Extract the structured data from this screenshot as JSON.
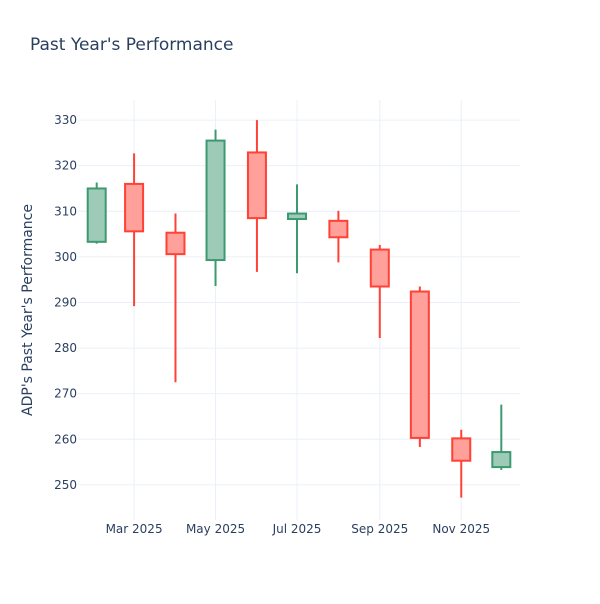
{
  "chart_data": {
    "type": "candlestick",
    "title": "Past Year's Performance",
    "xlabel": "",
    "ylabel": "ADP's Past Year's Performance",
    "xlim": [
      "2025-01-18",
      "2025-12-15"
    ],
    "ylim": [
      242.3,
      334.4
    ],
    "grid": true,
    "legend": "none",
    "x_ticks": [
      {
        "date": "2025-03-01",
        "label": "Mar 2025"
      },
      {
        "date": "2025-05-01",
        "label": "May 2025"
      },
      {
        "date": "2025-07-01",
        "label": "Jul 2025"
      },
      {
        "date": "2025-09-01",
        "label": "Sep 2025"
      },
      {
        "date": "2025-11-01",
        "label": "Nov 2025"
      }
    ],
    "y_ticks": [
      250,
      260,
      270,
      280,
      290,
      300,
      310,
      320,
      330
    ],
    "colors": {
      "increasing": "#3D9970",
      "decreasing": "#FF4136",
      "increasing_fill": "#9ECBB7",
      "decreasing_fill": "#FFA09B"
    },
    "candles": [
      {
        "date": "2025-02-01",
        "open": 303.3,
        "high": 316.3,
        "low": 302.9,
        "close": 315.0
      },
      {
        "date": "2025-03-01",
        "open": 316.0,
        "high": 322.7,
        "low": 289.2,
        "close": 305.6
      },
      {
        "date": "2025-04-01",
        "open": 305.3,
        "high": 309.5,
        "low": 272.5,
        "close": 300.6
      },
      {
        "date": "2025-05-01",
        "open": 299.3,
        "high": 327.9,
        "low": 293.6,
        "close": 325.5
      },
      {
        "date": "2025-06-01",
        "open": 322.9,
        "high": 330.0,
        "low": 296.7,
        "close": 308.5
      },
      {
        "date": "2025-07-01",
        "open": 308.3,
        "high": 315.9,
        "low": 296.4,
        "close": 309.5
      },
      {
        "date": "2025-08-01",
        "open": 307.9,
        "high": 310.1,
        "low": 298.8,
        "close": 304.3
      },
      {
        "date": "2025-09-01",
        "open": 301.6,
        "high": 302.6,
        "low": 282.2,
        "close": 293.5
      },
      {
        "date": "2025-10-01",
        "open": 292.4,
        "high": 293.5,
        "low": 258.3,
        "close": 260.3
      },
      {
        "date": "2025-11-01",
        "open": 260.2,
        "high": 262.1,
        "low": 247.2,
        "close": 255.3
      },
      {
        "date": "2025-12-01",
        "open": 253.9,
        "high": 267.6,
        "low": 253.3,
        "close": 257.2
      }
    ]
  }
}
